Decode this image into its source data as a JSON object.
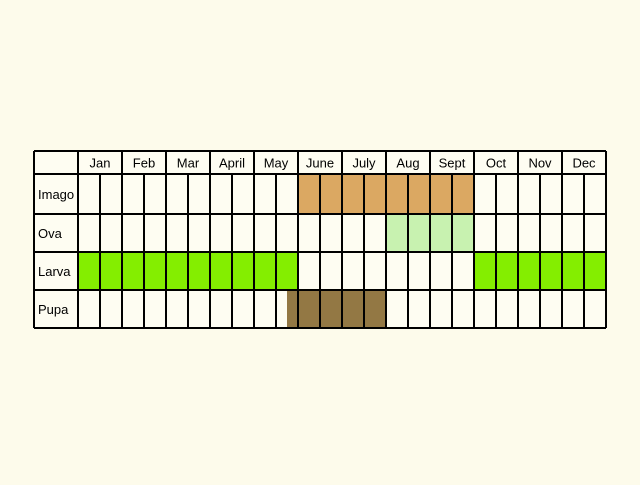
{
  "months": [
    "Jan",
    "Feb",
    "Mar",
    "April",
    "May",
    "June",
    "July",
    "Aug",
    "Sept",
    "Oct",
    "Nov",
    "Dec"
  ],
  "stages": [
    {
      "label": "Imago",
      "color": "#dba862",
      "start": 5.0,
      "end": 9.0
    },
    {
      "label": "Ova",
      "color": "#c8f2b0",
      "start": 7.0,
      "end": 9.0
    },
    {
      "label": "Larva",
      "color": "#84ee00",
      "ranges": [
        [
          0.0,
          5.0
        ],
        [
          9.0,
          12.0
        ]
      ]
    },
    {
      "label": "Pupa",
      "color": "#937844",
      "start": 4.75,
      "end": 7.0
    }
  ],
  "colors": {
    "background": "#fdfbeb",
    "cell": "#fefdf2",
    "grid": "#000000"
  }
}
